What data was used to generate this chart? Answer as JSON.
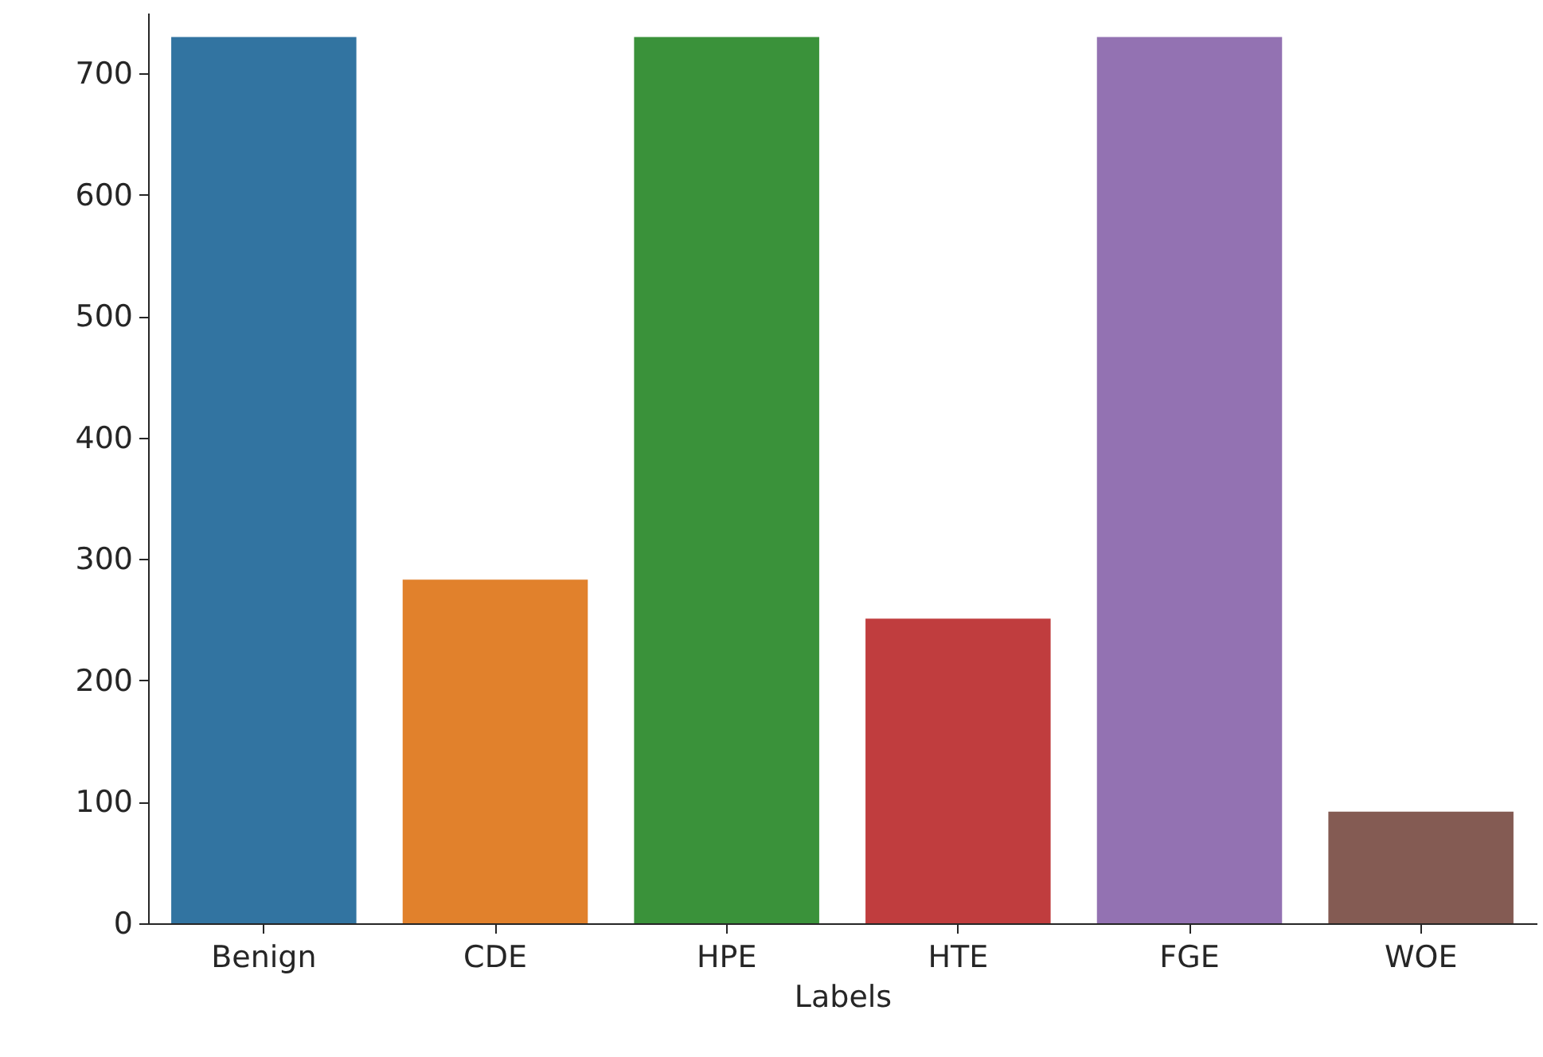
{
  "chart_data": {
    "type": "bar",
    "xlabel": "Labels",
    "categories": [
      "Benign",
      "CDE",
      "HPE",
      "HTE",
      "FGE",
      "WOE"
    ],
    "values": [
      730,
      283,
      730,
      251,
      730,
      92
    ],
    "colors": [
      "#3274a1",
      "#e1812c",
      "#3a923a",
      "#c03d3e",
      "#9372b2",
      "#845b53"
    ],
    "ylim": [
      0,
      750
    ],
    "yticks": [
      0,
      100,
      200,
      300,
      400,
      500,
      600,
      700
    ],
    "grid": false
  }
}
